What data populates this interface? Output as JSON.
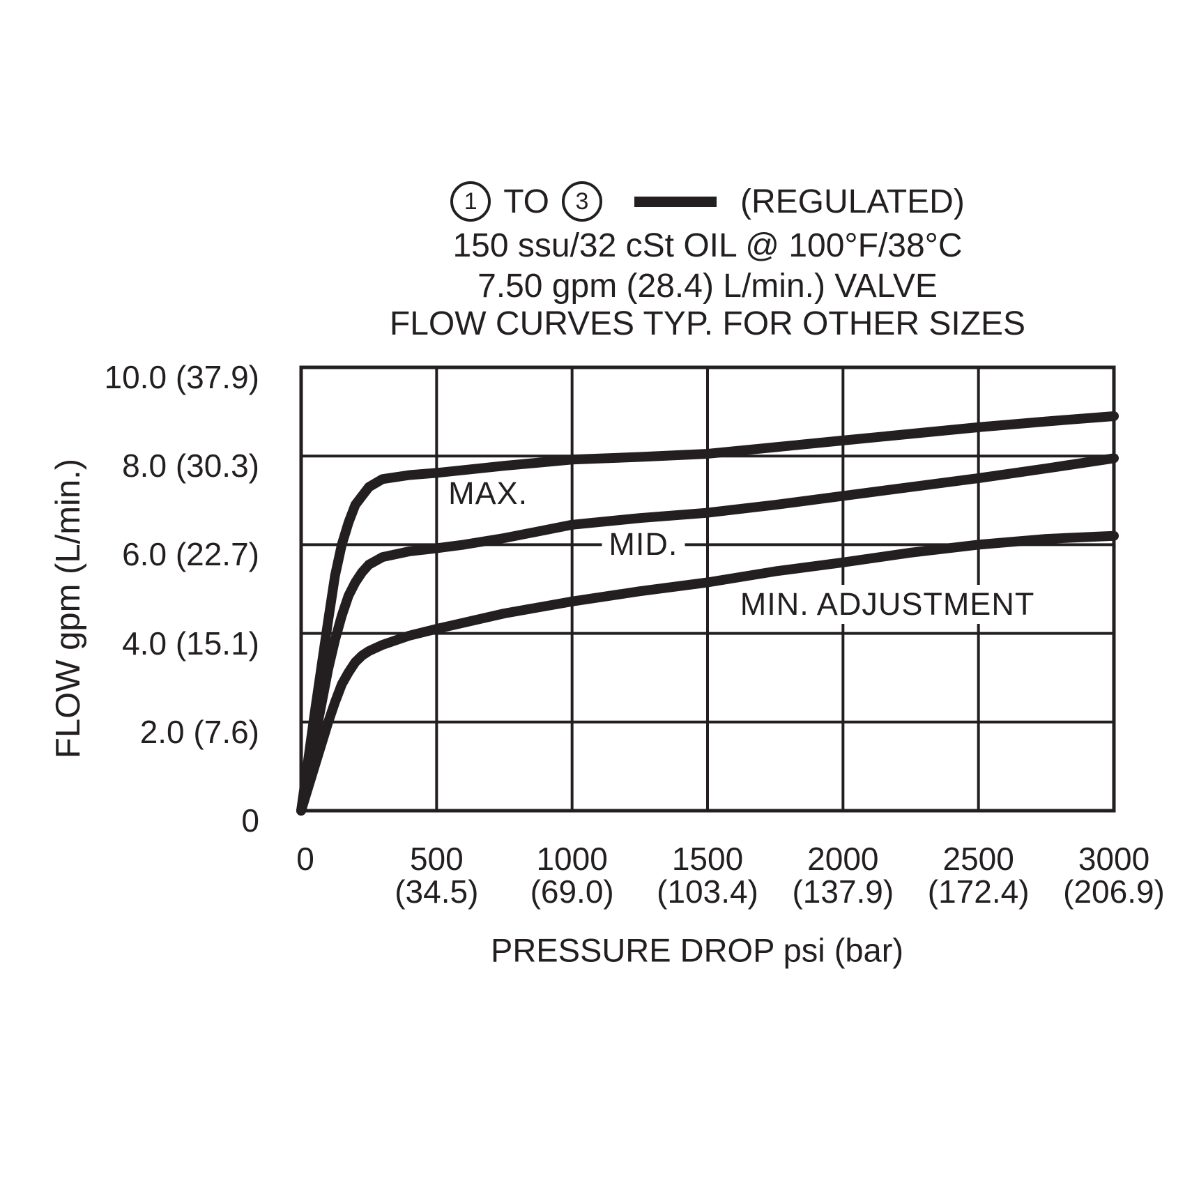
{
  "colors": {
    "ink": "#231f20",
    "background": "#ffffff"
  },
  "title": {
    "line1": {
      "port_from": "1",
      "connector": "TO",
      "port_to": "3",
      "legend_label": "(REGULATED)"
    },
    "line2": "150 ssu/32 cSt OIL @ 100°F/38°C",
    "line3": "7.50 gpm (28.4) L/min.) VALVE",
    "line4": "FLOW CURVES TYP. FOR OTHER SIZES"
  },
  "chart_data": {
    "type": "line",
    "title": "1 TO 3 (REGULATED) 150 ssu/32 cSt OIL @ 100°F/38°C 7.50 gpm (28.4) L/min.) VALVE FLOW CURVES TYP. FOR OTHER SIZES",
    "xlabel": "PRESSURE DROP psi (bar)",
    "ylabel": "FLOW gpm (L/min.)",
    "xlim": [
      0,
      3000
    ],
    "ylim": [
      0,
      10
    ],
    "grid": true,
    "legend": {
      "symbol": "thick-solid-line",
      "label": "(REGULATED)",
      "position": "title-line-1"
    },
    "x_ticks": [
      {
        "value": 0,
        "psi": "0",
        "bar": ""
      },
      {
        "value": 500,
        "psi": "500",
        "bar": "(34.5)"
      },
      {
        "value": 1000,
        "psi": "1000",
        "bar": "(69.0)"
      },
      {
        "value": 1500,
        "psi": "1500",
        "bar": "(103.4)"
      },
      {
        "value": 2000,
        "psi": "2000",
        "bar": "(137.9)"
      },
      {
        "value": 2500,
        "psi": "2500",
        "bar": "(172.4)"
      },
      {
        "value": 3000,
        "psi": "3000",
        "bar": "(206.9)"
      }
    ],
    "y_ticks": [
      {
        "value": 10,
        "gpm": "10.0",
        "lmin": "(37.9)"
      },
      {
        "value": 8,
        "gpm": "8.0",
        "lmin": "(30.3)"
      },
      {
        "value": 6,
        "gpm": "6.0",
        "lmin": "(22.7)"
      },
      {
        "value": 4,
        "gpm": "4.0",
        "lmin": "(15.1)"
      },
      {
        "value": 2,
        "gpm": "2.0",
        "lmin": "(7.6)"
      },
      {
        "value": 0,
        "gpm": "0",
        "lmin": ""
      }
    ],
    "series": [
      {
        "name": "MAX.",
        "slug": "max",
        "label_at": {
          "psi": 690,
          "gpm": 7.15
        },
        "points": [
          [
            0,
            0
          ],
          [
            50,
            2.2
          ],
          [
            100,
            4.3
          ],
          [
            125,
            5.3
          ],
          [
            150,
            6.0
          ],
          [
            175,
            6.5
          ],
          [
            200,
            6.9
          ],
          [
            225,
            7.1
          ],
          [
            250,
            7.3
          ],
          [
            300,
            7.48
          ],
          [
            400,
            7.57
          ],
          [
            500,
            7.62
          ],
          [
            750,
            7.78
          ],
          [
            1000,
            7.92
          ],
          [
            1250,
            7.98
          ],
          [
            1500,
            8.05
          ],
          [
            1750,
            8.2
          ],
          [
            2000,
            8.35
          ],
          [
            2250,
            8.5
          ],
          [
            2500,
            8.65
          ],
          [
            2750,
            8.78
          ],
          [
            3000,
            8.9
          ]
        ]
      },
      {
        "name": "MID.",
        "slug": "mid",
        "label_at": {
          "psi": 1263,
          "gpm": 6.0
        },
        "points": [
          [
            0,
            0
          ],
          [
            50,
            1.6
          ],
          [
            100,
            3.2
          ],
          [
            125,
            3.85
          ],
          [
            150,
            4.4
          ],
          [
            175,
            4.85
          ],
          [
            200,
            5.15
          ],
          [
            225,
            5.38
          ],
          [
            250,
            5.55
          ],
          [
            300,
            5.72
          ],
          [
            400,
            5.85
          ],
          [
            500,
            5.92
          ],
          [
            600,
            6.0
          ],
          [
            750,
            6.15
          ],
          [
            1000,
            6.45
          ],
          [
            1250,
            6.6
          ],
          [
            1500,
            6.72
          ],
          [
            1750,
            6.9
          ],
          [
            2000,
            7.1
          ],
          [
            2250,
            7.3
          ],
          [
            2500,
            7.5
          ],
          [
            2750,
            7.72
          ],
          [
            3000,
            7.95
          ]
        ]
      },
      {
        "name": "MIN. ADJUSTMENT",
        "slug": "min-adjustment",
        "label_at": {
          "psi": 2164,
          "gpm": 4.66
        },
        "points": [
          [
            0,
            0
          ],
          [
            50,
            1.0
          ],
          [
            100,
            2.0
          ],
          [
            125,
            2.45
          ],
          [
            150,
            2.85
          ],
          [
            175,
            3.12
          ],
          [
            200,
            3.35
          ],
          [
            225,
            3.5
          ],
          [
            250,
            3.6
          ],
          [
            300,
            3.74
          ],
          [
            400,
            3.95
          ],
          [
            500,
            4.1
          ],
          [
            750,
            4.45
          ],
          [
            1000,
            4.72
          ],
          [
            1250,
            4.95
          ],
          [
            1500,
            5.15
          ],
          [
            1750,
            5.4
          ],
          [
            2000,
            5.6
          ],
          [
            2250,
            5.82
          ],
          [
            2500,
            6.0
          ],
          [
            2750,
            6.13
          ],
          [
            3000,
            6.2
          ]
        ]
      }
    ]
  },
  "axis_titles": {
    "y": "FLOW gpm (L/min.)",
    "x": "PRESSURE DROP psi (bar)"
  }
}
